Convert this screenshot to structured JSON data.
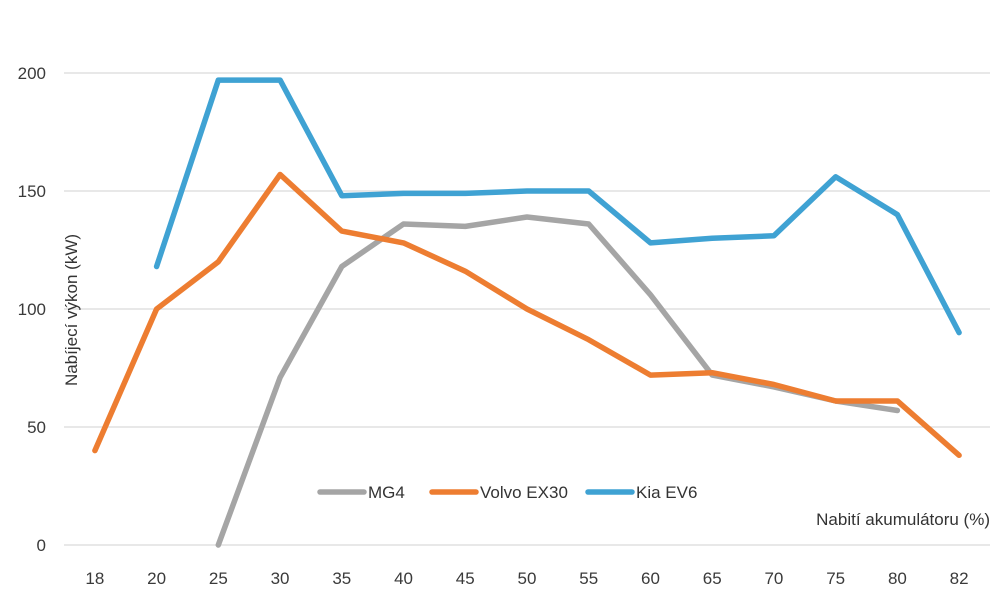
{
  "chart_data": {
    "type": "line",
    "x": [
      "18",
      "20",
      "25",
      "30",
      "35",
      "40",
      "45",
      "50",
      "55",
      "60",
      "65",
      "70",
      "75",
      "80",
      "82"
    ],
    "ylim": [
      0,
      200
    ],
    "yticks": [
      "0",
      "50",
      "100",
      "150",
      "200"
    ],
    "xlabel": "Nabití akumulátoru (%)",
    "ylabel": "Nabíjecí výkon (kW)",
    "grid": true,
    "legend_position": "bottom-center",
    "series": [
      {
        "name": "MG4",
        "color": "#a5a5a5",
        "values": [
          null,
          null,
          0,
          71,
          118,
          136,
          135,
          139,
          136,
          106,
          72,
          67,
          61,
          57,
          null
        ]
      },
      {
        "name": "Volvo EX30",
        "color": "#ed7d31",
        "values": [
          40,
          100,
          120,
          157,
          133,
          128,
          116,
          100,
          87,
          72,
          73,
          68,
          61,
          61,
          38
        ]
      },
      {
        "name": "Kia EV6",
        "color": "#3fa2d3",
        "values": [
          null,
          118,
          197,
          197,
          148,
          149,
          149,
          150,
          150,
          128,
          130,
          131,
          156,
          140,
          90
        ]
      }
    ]
  }
}
